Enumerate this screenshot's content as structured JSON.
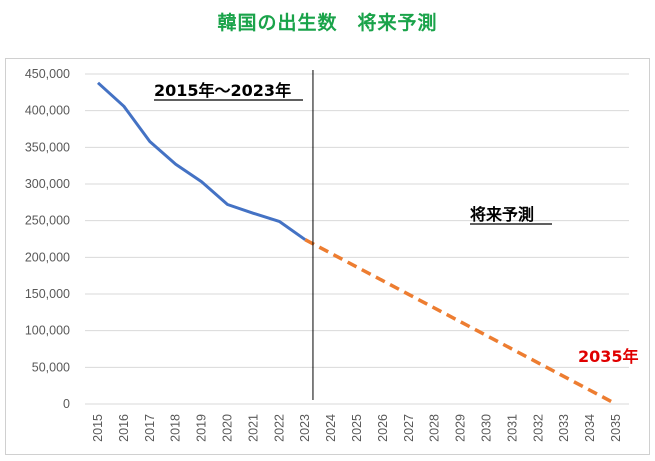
{
  "title": "韓国の出生数　将来予測",
  "chart_data": {
    "type": "line",
    "title": "韓国の出生数　将来予測",
    "xlabel": "",
    "ylabel": "",
    "x": [
      2015,
      2016,
      2017,
      2018,
      2019,
      2020,
      2021,
      2022,
      2023,
      2024,
      2025,
      2026,
      2027,
      2028,
      2029,
      2030,
      2031,
      2032,
      2033,
      2034,
      2035
    ],
    "ylim": [
      0,
      450000
    ],
    "yticks": [
      0,
      50000,
      100000,
      150000,
      200000,
      250000,
      300000,
      350000,
      400000,
      450000
    ],
    "ytick_labels": [
      "0",
      "50,000",
      "100,000",
      "150,000",
      "200,000",
      "250,000",
      "300,000",
      "350,000",
      "400,000",
      "450,000"
    ],
    "grid": true,
    "series": [
      {
        "style": "solid",
        "color": "#4472c4",
        "x": [
          2015,
          2016,
          2017,
          2018,
          2019,
          2020,
          2021,
          2022,
          2023
        ],
        "values": [
          438000,
          406000,
          358000,
          327000,
          303000,
          272000,
          260000,
          249000,
          224000
        ]
      },
      {
        "style": "dashed",
        "color": "#ed7d31",
        "x": [
          2023,
          2035
        ],
        "values": [
          224000,
          0
        ]
      }
    ],
    "divider_x": 2023.3,
    "annotations": {
      "actual_period": "2015年～2023年",
      "forecast": "将来予測",
      "end_year": "2035年"
    },
    "annotation_colors": {
      "actual_period": "#000000",
      "forecast": "#000000",
      "end_year": "#e00000"
    }
  }
}
